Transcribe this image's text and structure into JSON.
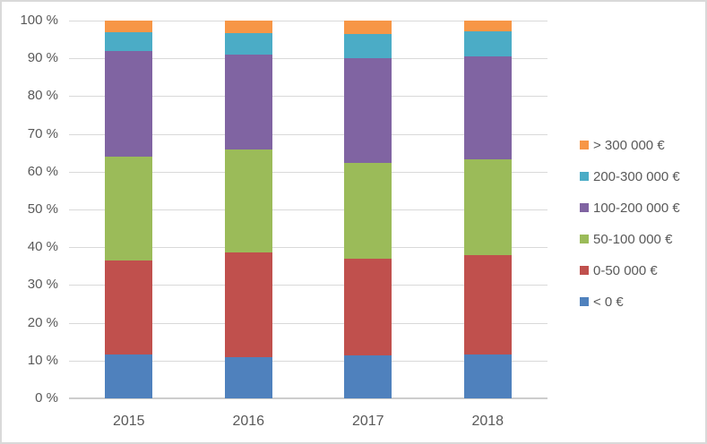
{
  "chart_data": {
    "type": "bar",
    "variant": "stacked-100-percent",
    "title": "",
    "xlabel": "",
    "ylabel": "",
    "categories": [
      "2015",
      "2016",
      "2017",
      "2018"
    ],
    "series": [
      {
        "name": "< 0 €",
        "color": "#4F81BD",
        "values": [
          11.7,
          11.0,
          11.4,
          11.7
        ]
      },
      {
        "name": "0-50 000 €",
        "color": "#C0504D",
        "values": [
          24.8,
          27.7,
          25.6,
          26.3
        ]
      },
      {
        "name": "50-100 000 €",
        "color": "#9BBB59",
        "values": [
          27.5,
          27.3,
          25.3,
          25.3
        ]
      },
      {
        "name": "100-200 000 €",
        "color": "#8064A2",
        "values": [
          28.0,
          25.0,
          27.7,
          27.2
        ]
      },
      {
        "name": "200-300 000 €",
        "color": "#4BACC6",
        "values": [
          5.0,
          5.8,
          6.4,
          6.7
        ]
      },
      {
        "name": "> 300 000 €",
        "color": "#F79646",
        "values": [
          3.0,
          3.2,
          3.6,
          2.8
        ]
      }
    ],
    "y_axis": {
      "min": 0,
      "max": 100,
      "tick_step": 10,
      "tick_labels": [
        "0 %",
        "10 %",
        "20 %",
        "30 %",
        "40 %",
        "50 %",
        "60 %",
        "70 %",
        "80 %",
        "90 %",
        "100 %"
      ],
      "grid": true
    },
    "legend": {
      "position": "right",
      "items_top_to_bottom": [
        "> 300 000 €",
        "200-300 000 €",
        "100-200 000 €",
        "50-100 000 €",
        "0-50 000 €",
        "< 0 €"
      ]
    },
    "style": {
      "gridline_color": "#D9D9D9",
      "axis_line_color": "#CDCDCD",
      "label_text_color": "#595959",
      "frame_border_color": "#D9D9D9",
      "background_color": "#FFFFFF"
    }
  }
}
